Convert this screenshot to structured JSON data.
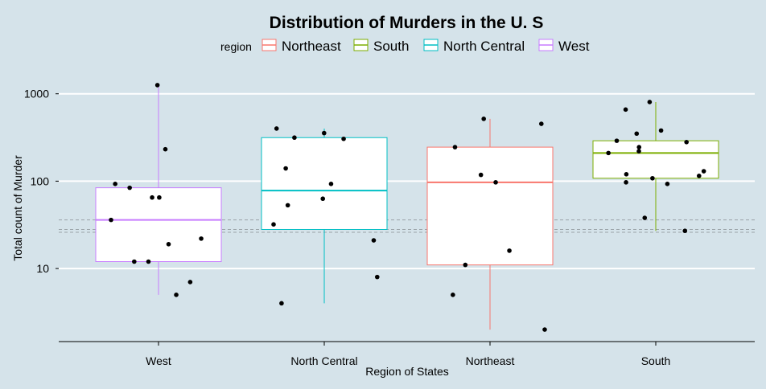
{
  "chart_data": {
    "type": "box",
    "title": "Distribution of Murders in the U. S",
    "xlabel": "Region of States",
    "ylabel": "Total count of Murder",
    "y_scale": "log10",
    "ylim": [
      1.2,
      1600
    ],
    "y_ticks": [
      10,
      100,
      1000
    ],
    "y_tick_labels": [
      "10",
      "100",
      "1000"
    ],
    "categories": [
      "West",
      "North Central",
      "Northeast",
      "South"
    ],
    "grid": "horizontal major",
    "legend": {
      "title": "region",
      "position": "top",
      "entries": [
        {
          "label": "Northeast",
          "color": "#f8766d"
        },
        {
          "label": "South",
          "color": "#7cae00"
        },
        {
          "label": "North Central",
          "color": "#00bfc4"
        },
        {
          "label": "West",
          "color": "#c77cff"
        }
      ]
    },
    "reference_lines": [
      36,
      28,
      26
    ],
    "boxes": [
      {
        "category": "West",
        "color": "#c77cff",
        "whisker_low": 5,
        "q1": 12,
        "median": 36,
        "q3": 84,
        "whisker_high": 1257
      },
      {
        "category": "North Central",
        "color": "#00bfc4",
        "whisker_low": 4,
        "q1": 28,
        "median": 78,
        "q3": 315,
        "whisker_high": 400
      },
      {
        "category": "Northeast",
        "color": "#f8766d",
        "whisker_low": 2,
        "q1": 11,
        "median": 97,
        "q3": 245,
        "whisker_high": 517
      },
      {
        "category": "South",
        "color": "#7cae00",
        "whisker_low": 27,
        "q1": 108,
        "median": 210,
        "q3": 290,
        "whisker_high": 805
      }
    ],
    "points": [
      {
        "category": "West",
        "values": [
          1257,
          232,
          93,
          84,
          65,
          65,
          36,
          22,
          19,
          12,
          12,
          7,
          5
        ]
      },
      {
        "category": "North Central",
        "values": [
          400,
          355,
          315,
          305,
          140,
          93,
          63,
          53,
          32,
          21,
          8,
          4
        ]
      },
      {
        "category": "Northeast",
        "values": [
          517,
          453,
          245,
          118,
          97,
          16,
          11,
          5,
          2
        ]
      },
      {
        "category": "South",
        "values": [
          805,
          660,
          380,
          350,
          290,
          280,
          245,
          220,
          210,
          130,
          120,
          115,
          108,
          97,
          93,
          38,
          27
        ]
      }
    ]
  }
}
